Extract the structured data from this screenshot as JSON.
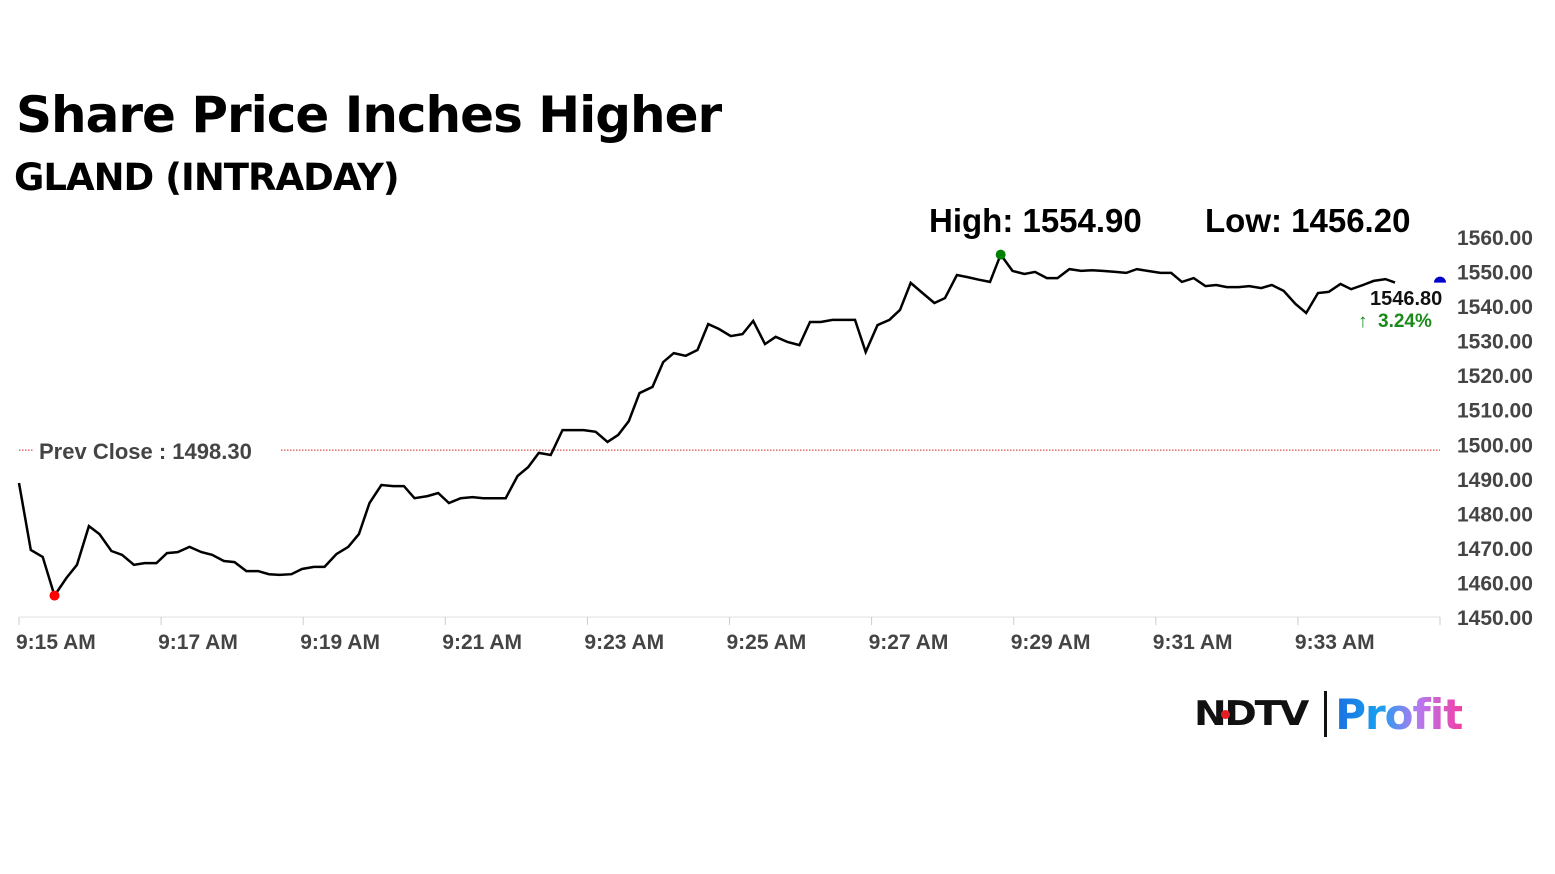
{
  "colors": {
    "line": "#000000",
    "prev_close": "#d62020",
    "low_marker": "#ff0000",
    "high_marker": "#008000",
    "last_marker": "#0000cc",
    "change_up": "#1a8a1a",
    "axis_text": "#444444"
  },
  "logo": {
    "brand": "NDTV",
    "product": "Profit"
  },
  "chart_data": {
    "type": "line",
    "title": "Share Price Inches Higher",
    "subtitle": "GLAND (INTRADAY)",
    "high_label": "High: 1554.90",
    "low_label": "Low: 1456.20",
    "high": 1554.9,
    "low": 1456.2,
    "prev_close": 1498.3,
    "prev_close_label": "Prev Close : 1498.30",
    "last_price_label": "1546.80",
    "last_price": 1546.8,
    "change_label": "3.24%",
    "change_direction": "up",
    "ylim": [
      1450,
      1560
    ],
    "y_ticks": [
      "1450.00",
      "1460.00",
      "1470.00",
      "1480.00",
      "1490.00",
      "1500.00",
      "1510.00",
      "1520.00",
      "1530.00",
      "1540.00",
      "1550.00",
      "1560.00"
    ],
    "xlim": [
      "9:15:00",
      "9:35:00"
    ],
    "x_ticks": [
      "9:15 AM",
      "9:17 AM",
      "9:19 AM",
      "9:21 AM",
      "9:23 AM",
      "9:25 AM",
      "9:27 AM",
      "9:29 AM",
      "9:31 AM",
      "9:33 AM"
    ],
    "grid": false,
    "y_axis_position": "right",
    "x": [
      "9:15:00",
      "9:15:10",
      "9:15:20",
      "9:15:30",
      "9:15:40",
      "9:15:49",
      "9:15:59",
      "9:16:08",
      "9:16:18",
      "9:16:27",
      "9:16:37",
      "9:16:46",
      "9:16:56",
      "9:17:05",
      "9:17:14",
      "9:17:24",
      "9:17:34",
      "9:17:43",
      "9:17:53",
      "9:18:02",
      "9:18:12",
      "9:18:22",
      "9:18:31",
      "9:18:40",
      "9:18:50",
      "9:18:59",
      "9:19:09",
      "9:19:18",
      "9:19:28",
      "9:19:38",
      "9:19:47",
      "9:19:56",
      "9:20:06",
      "9:20:16",
      "9:20:25",
      "9:20:34",
      "9:20:45",
      "9:20:54",
      "9:21:03",
      "9:21:13",
      "9:21:23",
      "9:21:32",
      "9:21:41",
      "9:21:51",
      "9:22:01",
      "9:22:10",
      "9:22:19",
      "9:22:29",
      "9:22:39",
      "9:22:48",
      "9:22:57",
      "9:23:07",
      "9:23:17",
      "9:23:26",
      "9:23:35",
      "9:23:44",
      "9:23:55",
      "9:24:04",
      "9:24:13",
      "9:24:23",
      "9:24:33",
      "9:24:42",
      "9:24:51",
      "9:25:01",
      "9:25:11",
      "9:25:20",
      "9:25:30",
      "9:25:39",
      "9:25:49",
      "9:25:59",
      "9:26:08",
      "9:26:17",
      "9:26:27",
      "9:26:37",
      "9:26:46",
      "9:26:55",
      "9:27:05",
      "9:27:15",
      "9:27:24",
      "9:27:33",
      "9:27:43",
      "9:27:53",
      "9:28:02",
      "9:28:12",
      "9:28:21",
      "9:28:31",
      "9:28:40",
      "9:28:49",
      "9:28:59",
      "9:29:09",
      "9:29:18",
      "9:29:28",
      "9:29:37",
      "9:29:47",
      "9:29:57",
      "9:30:06",
      "9:30:15",
      "9:30:26",
      "9:30:35",
      "9:30:44",
      "9:30:53",
      "9:31:04",
      "9:31:13",
      "9:31:22",
      "9:31:32",
      "9:31:42",
      "9:31:51",
      "9:32:00",
      "9:32:10",
      "9:32:19",
      "9:32:29",
      "9:32:38",
      "9:32:48",
      "9:32:58",
      "9:33:07",
      "9:33:17",
      "9:33:26",
      "9:33:36",
      "9:33:45",
      "9:33:55",
      "9:34:04",
      "9:34:14",
      "9:34:22"
    ],
    "values": [
      1488.8,
      1469.4,
      1467.4,
      1456.2,
      1461.3,
      1465.1,
      1476.3,
      1474.0,
      1469.1,
      1468.0,
      1465.1,
      1465.6,
      1465.6,
      1468.5,
      1468.8,
      1470.3,
      1468.8,
      1468.0,
      1466.2,
      1465.9,
      1463.3,
      1463.3,
      1462.4,
      1462.2,
      1462.4,
      1463.9,
      1464.5,
      1464.5,
      1468.2,
      1470.3,
      1474.0,
      1483.0,
      1488.2,
      1487.9,
      1487.9,
      1484.4,
      1485.0,
      1485.9,
      1483.0,
      1484.4,
      1484.7,
      1484.4,
      1484.4,
      1484.4,
      1490.8,
      1493.4,
      1497.5,
      1496.9,
      1504.1,
      1504.1,
      1504.1,
      1503.6,
      1500.7,
      1502.7,
      1506.7,
      1514.8,
      1516.6,
      1523.8,
      1526.4,
      1525.6,
      1527.3,
      1534.8,
      1533.4,
      1531.3,
      1531.9,
      1535.7,
      1529.0,
      1531.1,
      1529.6,
      1528.7,
      1535.4,
      1535.4,
      1536.0,
      1536.0,
      1536.0,
      1526.7,
      1534.5,
      1536.0,
      1538.9,
      1546.7,
      1543.8,
      1540.9,
      1542.3,
      1549.0,
      1548.4,
      1547.6,
      1547.0,
      1554.9,
      1550.2,
      1549.3,
      1549.9,
      1548.1,
      1548.1,
      1550.7,
      1550.2,
      1550.4,
      1550.2,
      1549.9,
      1549.6,
      1550.7,
      1550.2,
      1549.6,
      1549.6,
      1547.0,
      1548.1,
      1545.8,
      1546.1,
      1545.5,
      1545.5,
      1545.8,
      1545.2,
      1546.1,
      1544.4,
      1540.6,
      1538.0,
      1543.8,
      1544.1,
      1546.4,
      1544.9,
      1546.1,
      1547.3,
      1547.8,
      1546.8
    ]
  }
}
